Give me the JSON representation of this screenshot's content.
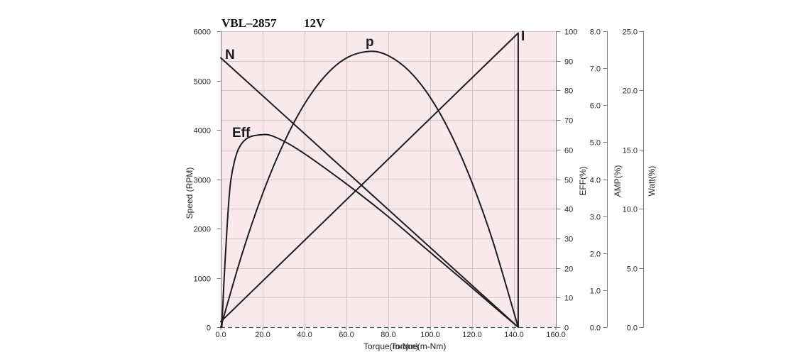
{
  "colors": {
    "page_background": "#ffffff",
    "plot_background": "#f8eaec",
    "grid": "#d6c5c8",
    "curve": "#1c1c1c",
    "axis": "#7a7a7a",
    "baseline": "#555555"
  },
  "chart_data": {
    "type": "line",
    "title": "VBL–2857",
    "subtitle": "12V",
    "xlabels": [
      "Torque(m-Nm)",
      "Torque(m-Nm)"
    ],
    "xlim": [
      0,
      160
    ],
    "x_ticks": [
      "0.0",
      "20.0",
      "40.0",
      "60.0",
      "80.0",
      "100.0",
      "120.0",
      "140.0",
      "160.0"
    ],
    "grid": true,
    "y_axes": [
      {
        "label": "Speed (RPM)",
        "lim": [
          0,
          6000
        ],
        "ticks": [
          "0",
          "1000",
          "2000",
          "3000",
          "4000",
          "5000",
          "6000"
        ]
      },
      {
        "label": "EFF(%)",
        "lim": [
          0,
          100
        ],
        "ticks": [
          "0",
          "10",
          "20",
          "30",
          "40",
          "50",
          "60",
          "70",
          "80",
          "90",
          "100"
        ]
      },
      {
        "label": "AMP(%)",
        "lim": [
          0,
          8
        ],
        "ticks": [
          "0.0",
          "1.0",
          "2.0",
          "3.0",
          "4.0",
          "5.0",
          "6.0",
          "7.0",
          "8.0"
        ]
      },
      {
        "label": "Watt(%)",
        "lim": [
          0,
          25
        ],
        "ticks": [
          "0.0",
          "5.0",
          "10.0",
          "15.0",
          "20.0",
          "25.0"
        ]
      }
    ],
    "series": [
      {
        "name": "N",
        "y_axis": 0,
        "x": [
          0,
          142
        ],
        "y": [
          5460,
          0
        ]
      },
      {
        "name": "p",
        "y_axis": 3,
        "x": [
          0,
          10,
          20,
          30,
          40,
          50,
          60,
          71,
          80,
          90,
          100,
          110,
          120,
          130,
          142
        ],
        "y": [
          0,
          6.1,
          11.28,
          15.53,
          18.86,
          21.26,
          22.74,
          23.3,
          22.93,
          21.63,
          19.41,
          16.27,
          12.2,
          7.21,
          0
        ]
      },
      {
        "name": "Eff",
        "y_axis": 1,
        "x": [
          0.5,
          1.5,
          3,
          4.5,
          6.5,
          9,
          13,
          19,
          25,
          37,
          57,
          78,
          98,
          118,
          132,
          142
        ],
        "y": [
          0,
          15,
          34,
          48,
          56,
          61,
          64,
          65,
          64.5,
          60,
          50,
          38.5,
          26.5,
          14.5,
          6,
          0
        ]
      },
      {
        "name": "I",
        "y_axis": 2,
        "x": [
          0,
          142,
          142
        ],
        "y": [
          0.15,
          7.95,
          0
        ]
      }
    ]
  }
}
